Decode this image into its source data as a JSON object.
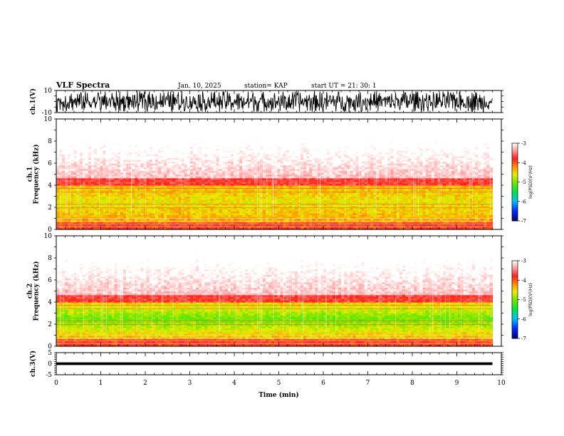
{
  "header": {
    "title": "VLF Spectra",
    "date": "Jan. 10, 2025",
    "station": "station= KAP",
    "start": "start  UT =   21: 30: 1"
  },
  "chart_data": [
    {
      "type": "line",
      "name": "ch1-waveform",
      "ylabel": "ch.1(V)",
      "ylim": [
        -10,
        10
      ],
      "yticks": [
        "10",
        "-10"
      ],
      "xlim": [
        0,
        10
      ],
      "data_extent_min": 9.8
    },
    {
      "type": "heatmap",
      "name": "ch1-spectrogram",
      "ylabel": "ch.1\nFrequency (kHz)",
      "ylim": [
        0,
        10
      ],
      "yticks": [
        "0",
        "2",
        "4",
        "6",
        "8",
        "10"
      ],
      "xlim": [
        0,
        10
      ],
      "data_extent_min": 9.8,
      "colorbar": {
        "label": "log(PSD)(V²/Hz)",
        "range": [
          -7,
          -3
        ],
        "ticks": [
          "-3",
          "-4",
          "-5",
          "-6",
          "-7"
        ]
      }
    },
    {
      "type": "heatmap",
      "name": "ch2-spectrogram",
      "ylabel": "ch.2\nFrequency (kHz)",
      "ylim": [
        0,
        10
      ],
      "yticks": [
        "0",
        "2",
        "4",
        "6",
        "8",
        "10"
      ],
      "xlim": [
        0,
        10
      ],
      "data_extent_min": 9.8,
      "colorbar": {
        "label": "log(PSD)(V²/Hz)",
        "range": [
          -7,
          -3
        ],
        "ticks": [
          "-3",
          "-4",
          "-5",
          "-6",
          "-7"
        ]
      }
    },
    {
      "type": "line",
      "name": "ch3-waveform",
      "ylabel": "ch.3(V)",
      "ylim": [
        -5,
        5
      ],
      "yticks": [
        "5",
        "0",
        "-5"
      ],
      "xlim": [
        0,
        10
      ],
      "xlabel": "Time (min)",
      "xticks": [
        "0",
        "1",
        "2",
        "3",
        "4",
        "5",
        "6",
        "7",
        "8",
        "9",
        "10"
      ],
      "data_extent_min": 9.8
    }
  ],
  "colors": {
    "low": "#00007f",
    "mid_green": "#00e000",
    "yellow": "#e8e800",
    "red": "#ff1a1a",
    "high": "#ffffff"
  }
}
